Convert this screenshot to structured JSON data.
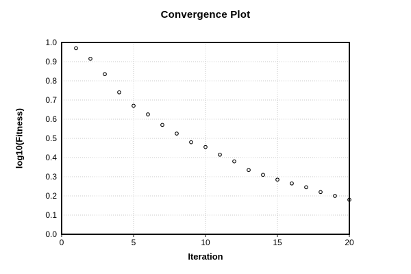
{
  "chart_data": {
    "type": "scatter",
    "title": "Convergence Plot",
    "xlabel": "Iteration",
    "ylabel": "log10(Fitness)",
    "xlim": [
      0,
      20
    ],
    "ylim": [
      0.0,
      1.0
    ],
    "x_tick_labels": [
      "0",
      "5",
      "10",
      "15",
      "20"
    ],
    "y_tick_labels": [
      "0.0",
      "0.1",
      "0.2",
      "0.3",
      "0.4",
      "0.5",
      "0.6",
      "0.7",
      "0.8",
      "0.9",
      "1.0"
    ],
    "grid": true,
    "grid_style": "dotted",
    "legend_position": "none",
    "marker": "open-circle",
    "colors": {
      "marker_stroke": "#000000",
      "grid": "#c8c8c8",
      "axis": "#000000",
      "text": "#000000",
      "background": "#ffffff"
    },
    "x": [
      1,
      2,
      3,
      4,
      5,
      6,
      7,
      8,
      9,
      10,
      11,
      12,
      13,
      14,
      15,
      16,
      17,
      18,
      19,
      20
    ],
    "y": [
      0.97,
      0.915,
      0.835,
      0.74,
      0.67,
      0.625,
      0.57,
      0.525,
      0.48,
      0.455,
      0.415,
      0.38,
      0.335,
      0.31,
      0.285,
      0.265,
      0.245,
      0.22,
      0.2,
      0.18
    ]
  }
}
